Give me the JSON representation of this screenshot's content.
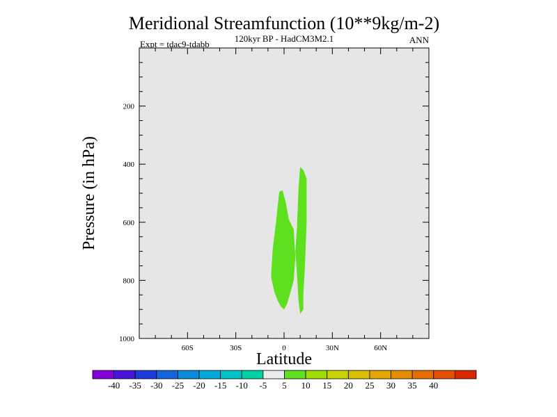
{
  "chart_data": {
    "type": "contour",
    "title": "Meridional Streamfunction (10**9kg/m-2)",
    "subtitle": "120kyr BP - HadCM3M2.1",
    "left_label": "Expt = tdac9-tdabb",
    "right_label": "ANN",
    "xlabel": "Latitude",
    "ylabel": "Pressure (in hPa)",
    "xlim": [
      -90,
      90
    ],
    "ylim": [
      1000,
      0
    ],
    "x_ticks": [
      {
        "value": -60,
        "label": "60S"
      },
      {
        "value": -30,
        "label": "30S"
      },
      {
        "value": 0,
        "label": "0"
      },
      {
        "value": 30,
        "label": "30N"
      },
      {
        "value": 60,
        "label": "60N"
      }
    ],
    "y_ticks": [
      {
        "value": 200,
        "label": "200"
      },
      {
        "value": 400,
        "label": "400"
      },
      {
        "value": 600,
        "label": "600"
      },
      {
        "value": 800,
        "label": "800"
      },
      {
        "value": 1000,
        "label": "1000"
      }
    ],
    "background_color": "#e6e6e6",
    "shaded_regions": [
      {
        "name": "contour-5-10-left",
        "level_range": [
          5,
          10
        ],
        "color": "#5ee01e",
        "points": [
          [
            -8,
            775
          ],
          [
            -7,
            690
          ],
          [
            -5,
            600
          ],
          [
            -3,
            495
          ],
          [
            -1,
            490
          ],
          [
            1,
            530
          ],
          [
            3,
            590
          ],
          [
            6,
            625
          ],
          [
            7,
            720
          ],
          [
            6,
            800
          ],
          [
            4,
            840
          ],
          [
            2,
            880
          ],
          [
            0,
            900
          ],
          [
            -2,
            890
          ],
          [
            -4,
            870
          ],
          [
            -6,
            840
          ],
          [
            -8,
            790
          ]
        ]
      },
      {
        "name": "contour-5-10-right",
        "level_range": [
          5,
          10
        ],
        "color": "#5ee01e",
        "points": [
          [
            8,
            620
          ],
          [
            9,
            480
          ],
          [
            10,
            410
          ],
          [
            12,
            420
          ],
          [
            14,
            450
          ],
          [
            14,
            600
          ],
          [
            13,
            750
          ],
          [
            12,
            850
          ],
          [
            12,
            900
          ],
          [
            10,
            915
          ],
          [
            9,
            870
          ],
          [
            8,
            780
          ],
          [
            7,
            700
          ]
        ]
      }
    ],
    "colorbar": {
      "colors": [
        "#8200dc",
        "#4b14dc",
        "#1e3cdc",
        "#1464dc",
        "#0a8cdc",
        "#00aadc",
        "#00c3c8",
        "#00d2a5",
        "#ebebeb",
        "#5ee01e",
        "#a0dc00",
        "#c8d200",
        "#dcbe00",
        "#e6a500",
        "#e68c00",
        "#e66e00",
        "#e65000",
        "#dc2800"
      ],
      "labels": [
        "-40",
        "-35",
        "-30",
        "-25",
        "-20",
        "-15",
        "-10",
        "-5",
        "5",
        "10",
        "15",
        "20",
        "25",
        "30",
        "35",
        "40"
      ]
    }
  }
}
